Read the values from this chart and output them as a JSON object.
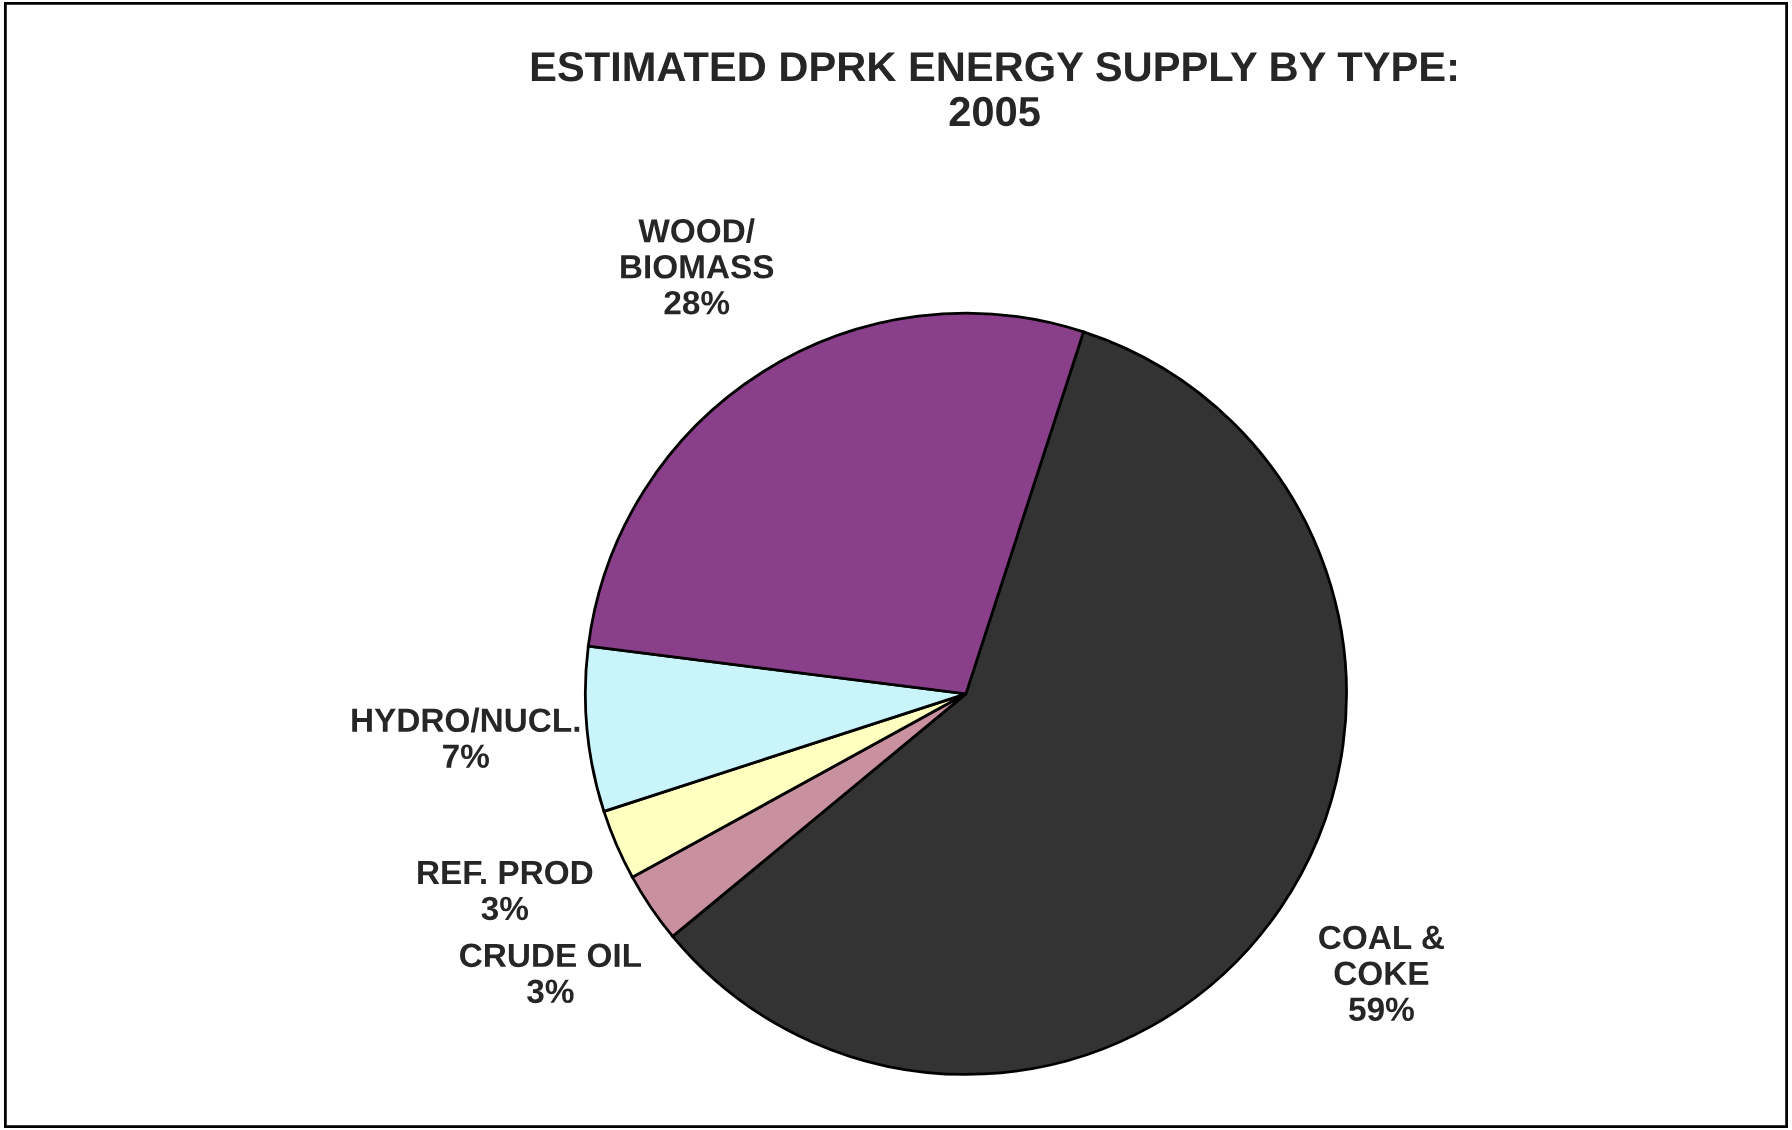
{
  "chart_data": {
    "type": "pie",
    "title": "ESTIMATED DPRK ENERGY SUPPLY BY TYPE:\n2005",
    "categories": [
      "COAL &\nCOKE",
      "CRUDE OIL",
      "REF. PROD",
      "HYDRO/NUCL.",
      "WOOD/\nBIOMASS"
    ],
    "values": [
      59,
      3,
      3,
      7,
      28
    ],
    "value_labels": [
      "59%",
      "3%",
      "3%",
      "7%",
      "28%"
    ],
    "colors": [
      "#333333",
      "#c9909f",
      "#ffffc0",
      "#c8f4fa",
      "#8a3f8a"
    ],
    "legend": false
  }
}
